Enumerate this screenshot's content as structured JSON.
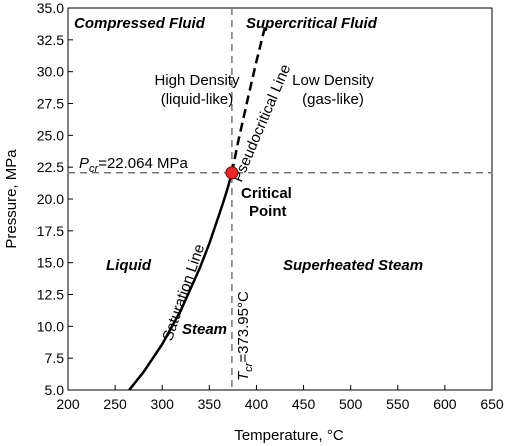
{
  "chart_data": {
    "type": "line",
    "xlabel": "Temperature, °C",
    "ylabel": "Pressure, MPa",
    "xlim": [
      200,
      650
    ],
    "ylim": [
      5.0,
      35.0
    ],
    "x_ticks": [
      "200",
      "250",
      "300",
      "350",
      "400",
      "450",
      "500",
      "550",
      "600",
      "650"
    ],
    "y_ticks": [
      "5.0",
      "7.5",
      "10.0",
      "12.5",
      "15.0",
      "17.5",
      "20.0",
      "22.5",
      "25.0",
      "27.5",
      "30.0",
      "32.5",
      "35.0"
    ],
    "grid": false,
    "series": [
      {
        "name": "Saturation Line",
        "style": "solid",
        "color": "#000000",
        "x": [
          265,
          280,
          300,
          320,
          340,
          350,
          360,
          365,
          370,
          373.95
        ],
        "y": [
          5.0,
          6.4,
          8.6,
          11.3,
          14.6,
          16.5,
          18.7,
          19.8,
          21.0,
          22.064
        ]
      },
      {
        "name": "Pseudocritical Line",
        "style": "dashed",
        "color": "#000000",
        "x": [
          373.95,
          380,
          390,
          400,
          410
        ],
        "y": [
          22.064,
          24.3,
          27.6,
          30.8,
          33.8
        ]
      }
    ],
    "critical_point": {
      "x": 373.95,
      "y": 22.064,
      "color": "#e8272a"
    },
    "reference_lines": {
      "pressure_text": "=22.064 MPa",
      "pressure_value": 22.064,
      "temperature_text": "=373.95°C",
      "temperature_value": 373.95
    },
    "annotations": {
      "compressed_fluid": "Compressed Fluid",
      "supercritical_fluid": "Supercritical Fluid",
      "high_density": "High Density",
      "liquid_like": "(liquid-like)",
      "low_density": "Low Density",
      "gas_like": "(gas-like)",
      "pseudocritical_line": "Pseudocritical Line",
      "critical": "Critical",
      "point": "Point",
      "liquid": "Liquid",
      "superheated_steam": "Superheated Steam",
      "saturation_line": "Saturation Line",
      "steam": "Steam",
      "p_symbol": "P",
      "t_symbol": "T",
      "cr_subscript": "cr"
    }
  }
}
